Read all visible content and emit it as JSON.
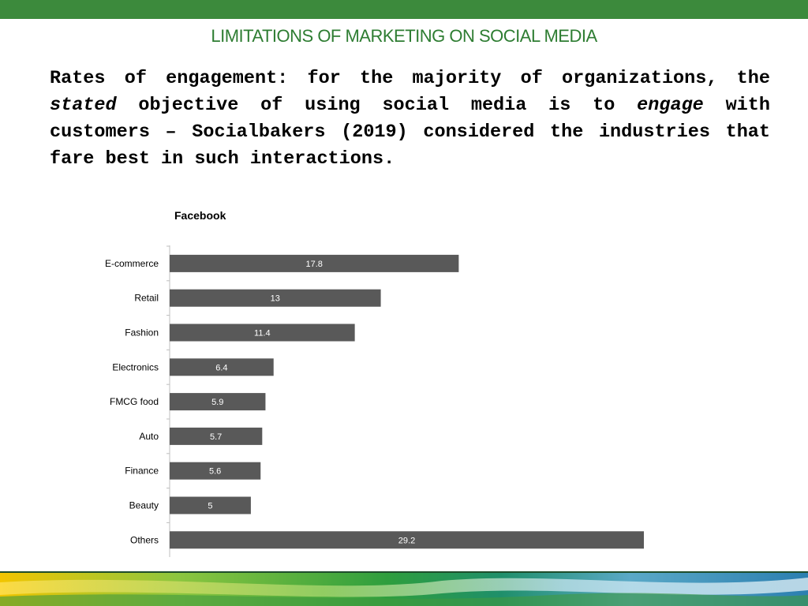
{
  "slide": {
    "title": "LIMITATIONS OF MARKETING ON SOCIAL MEDIA",
    "paragraph": {
      "part1": "Rates of engagement: for the majority of organizations, the ",
      "em1": "stated",
      "part2": " objective of using social media is to ",
      "em2": "engage",
      "part3": " with customers – Socialbakers (2019) considered the industries that fare best in such interactions."
    }
  },
  "colors": {
    "header_bar": "#3c8a3c",
    "title_text": "#2e7d32",
    "bar_fill": "#595959"
  },
  "chart_data": {
    "type": "bar",
    "orientation": "horizontal",
    "title": "Facebook",
    "categories": [
      "E-commerce",
      "Retail",
      "Fashion",
      "Electronics",
      "FMCG food",
      "Auto",
      "Finance",
      "Beauty",
      "Others"
    ],
    "values": [
      17.8,
      13,
      11.4,
      6.4,
      5.9,
      5.7,
      5.6,
      5,
      29.2
    ],
    "xlim": [
      0,
      29.2
    ],
    "grid": false,
    "data_labels": true
  }
}
